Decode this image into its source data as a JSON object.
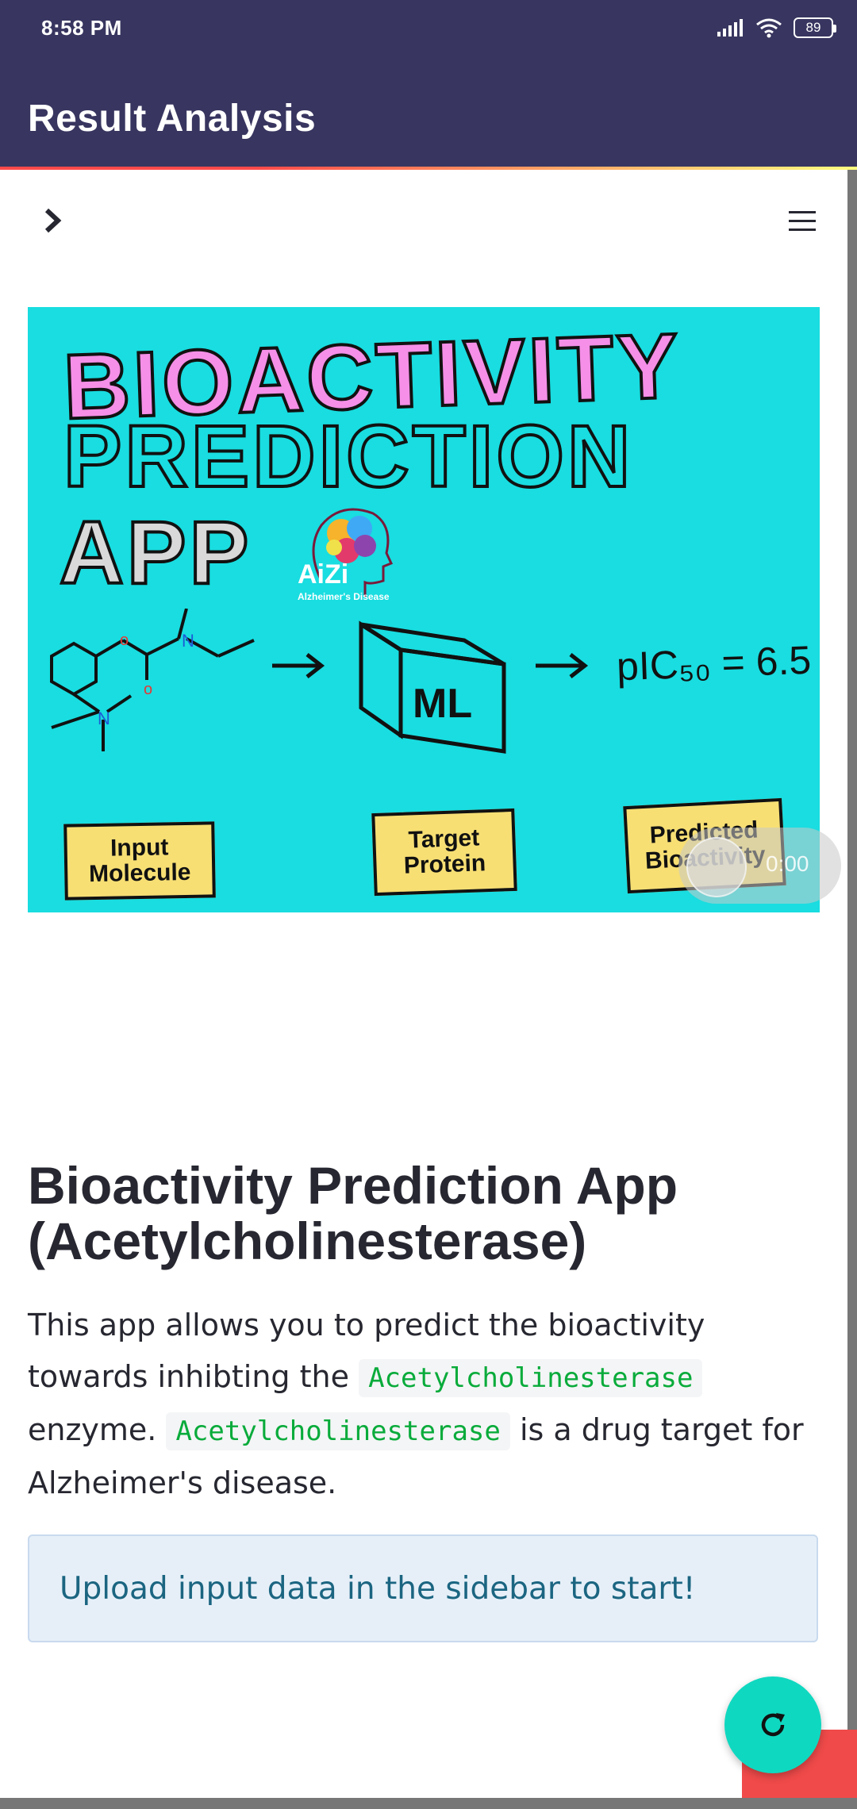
{
  "status_bar": {
    "time": "8:58 PM",
    "battery": "89"
  },
  "app_bar": {
    "title": "Result Analysis"
  },
  "hero_image": {
    "line1": "BIOACTIVITY",
    "line2": "PREDICTION",
    "line3": "APP",
    "logo_name": "AiZi",
    "logo_sub": "Alzheimer's Disease",
    "ml": "ML",
    "pic50": "pIC₅₀ = 6.5",
    "label_input": "Input Molecule",
    "label_target": "Target Protein",
    "label_predicted": "Predicted Bioactivity"
  },
  "video_overlay": {
    "time": "0:00"
  },
  "main": {
    "heading": "Bioactivity Prediction App (Acetylcholinesterase)",
    "para_part1": "This app allows you to predict the bioactivity towards inhibting the ",
    "code1": "Acetylcholinesterase",
    "para_part2": " enzyme. ",
    "code2": "Acetylcholinesterase",
    "para_part3": " is a drug target for Alzheimer's disease.",
    "info": "Upload input data in the sidebar to start!"
  },
  "colors": {
    "app_bar": "#383660",
    "hero_bg": "#19dde0",
    "fab": "#0fd8c0",
    "info_bg": "#e6eff8",
    "code_text": "#09ab3b"
  },
  "icons": {
    "sidebar_toggle": "chevron-right-icon",
    "menu": "hamburger-menu-icon",
    "fab": "refresh-icon"
  }
}
